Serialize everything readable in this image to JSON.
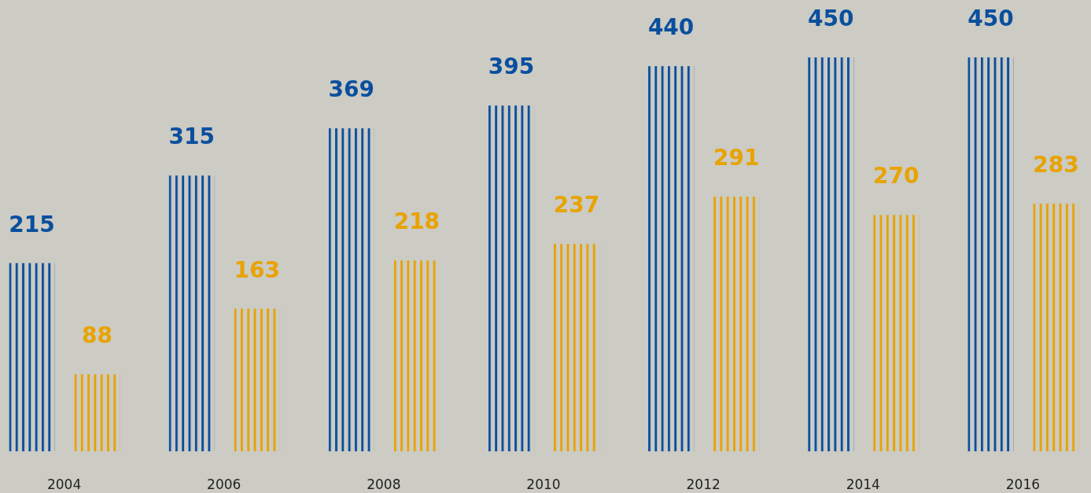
{
  "chart_data": {
    "type": "bar",
    "categories": [
      "2004",
      "2006",
      "2008",
      "2010",
      "2012",
      "2014",
      "2016"
    ],
    "series": [
      {
        "color": "#0a4f9e",
        "values": [
          215,
          315,
          369,
          395,
          440,
          450,
          450
        ]
      },
      {
        "color": "#e8a300",
        "values": [
          88,
          163,
          218,
          237,
          291,
          270,
          283
        ]
      }
    ],
    "data_labels": true
  }
}
